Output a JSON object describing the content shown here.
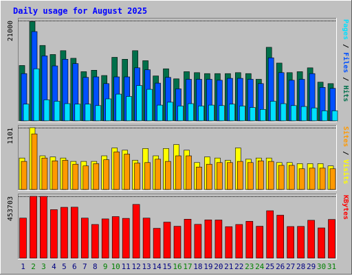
{
  "title": "Daily usage for August 2025",
  "colors": {
    "frame_bg": "#c0c0c0",
    "title": "#0000ff",
    "hits": "#006f4a",
    "files": "#0050ff",
    "pages": "#00e0ff",
    "visits": "#ffff00",
    "sites": "#ff9900",
    "kbytes": "#ff0000",
    "weekday_label": "#000080",
    "weekend_label": "#008000"
  },
  "chart_data": [
    {
      "type": "bar",
      "title": "Daily usage for August 2025",
      "categories": [
        "1",
        "2",
        "3",
        "4",
        "5",
        "6",
        "7",
        "8",
        "9",
        "10",
        "11",
        "12",
        "13",
        "14",
        "15",
        "16",
        "17",
        "18",
        "19",
        "20",
        "21",
        "22",
        "23",
        "24",
        "25",
        "26",
        "27",
        "28",
        "29",
        "30",
        "31"
      ],
      "weekend_days": [
        "2",
        "3",
        "9",
        "10",
        "16",
        "17",
        "23",
        "24",
        "30",
        "31"
      ],
      "ylabel_parts": [
        "Pages",
        "Files",
        "Hits"
      ],
      "max_label": "21000",
      "ylim": [
        0,
        21000
      ],
      "series": [
        {
          "name": "Hits",
          "values": [
            11600,
            20800,
            15800,
            13900,
            14700,
            13100,
            10300,
            10600,
            9500,
            13300,
            12900,
            14700,
            12600,
            9400,
            10900,
            8800,
            10300,
            10100,
            9900,
            9900,
            9900,
            10100,
            9900,
            8700,
            15400,
            12100,
            10100,
            10300,
            11100,
            8100,
            7800
          ]
        },
        {
          "name": "Files",
          "values": [
            9900,
            18700,
            13600,
            11500,
            12900,
            12000,
            9100,
            9200,
            7800,
            9200,
            9200,
            11100,
            10700,
            7900,
            9100,
            6700,
            8700,
            8700,
            8700,
            8500,
            8900,
            8900,
            8700,
            7800,
            13200,
            10100,
            8500,
            8700,
            9900,
            7000,
            6800
          ]
        },
        {
          "name": "Pages",
          "values": [
            3500,
            10900,
            4400,
            4100,
            3600,
            3500,
            3500,
            3200,
            4600,
            5600,
            5100,
            7400,
            6600,
            3300,
            3900,
            3100,
            3600,
            3100,
            3300,
            3200,
            3500,
            3100,
            2800,
            2400,
            4100,
            3600,
            3200,
            3000,
            2700,
            2100,
            2100
          ]
        }
      ]
    },
    {
      "type": "bar",
      "categories": [
        "1",
        "2",
        "3",
        "4",
        "5",
        "6",
        "7",
        "8",
        "9",
        "10",
        "11",
        "12",
        "13",
        "14",
        "15",
        "16",
        "17",
        "18",
        "19",
        "20",
        "21",
        "22",
        "23",
        "24",
        "25",
        "26",
        "27",
        "28",
        "29",
        "30",
        "31"
      ],
      "ylabel_parts": [
        "Sites",
        "Visits"
      ],
      "max_label": "1101",
      "ylim": [
        0,
        1101
      ],
      "series": [
        {
          "name": "Visits",
          "values": [
            560,
            1101,
            600,
            580,
            560,
            500,
            500,
            500,
            600,
            740,
            700,
            520,
            730,
            600,
            730,
            800,
            700,
            480,
            580,
            560,
            520,
            740,
            540,
            560,
            560,
            480,
            480,
            460,
            460,
            460,
            420
          ]
        },
        {
          "name": "Sites",
          "values": [
            500,
            990,
            560,
            510,
            520,
            450,
            420,
            460,
            530,
            670,
            630,
            470,
            480,
            540,
            500,
            600,
            600,
            400,
            450,
            480,
            480,
            500,
            480,
            510,
            500,
            430,
            430,
            370,
            380,
            380,
            370
          ]
        }
      ]
    },
    {
      "type": "bar",
      "categories": [
        "1",
        "2",
        "3",
        "4",
        "5",
        "6",
        "7",
        "8",
        "9",
        "10",
        "11",
        "12",
        "13",
        "14",
        "15",
        "16",
        "17",
        "18",
        "19",
        "20",
        "21",
        "22",
        "23",
        "24",
        "25",
        "26",
        "27",
        "28",
        "29",
        "30",
        "31"
      ],
      "ylabel_parts": [
        "KBytes"
      ],
      "max_label": "453703",
      "ylim": [
        0,
        453703
      ],
      "series": [
        {
          "name": "KBytes",
          "values": [
            294000,
            453703,
            453000,
            356000,
            373000,
            374000,
            294000,
            247000,
            288000,
            305000,
            292000,
            394000,
            294000,
            219000,
            264000,
            234000,
            286000,
            248000,
            281000,
            280000,
            231000,
            247000,
            270000,
            234000,
            348000,
            315000,
            232000,
            233000,
            278000,
            222000,
            284000
          ]
        }
      ]
    }
  ]
}
